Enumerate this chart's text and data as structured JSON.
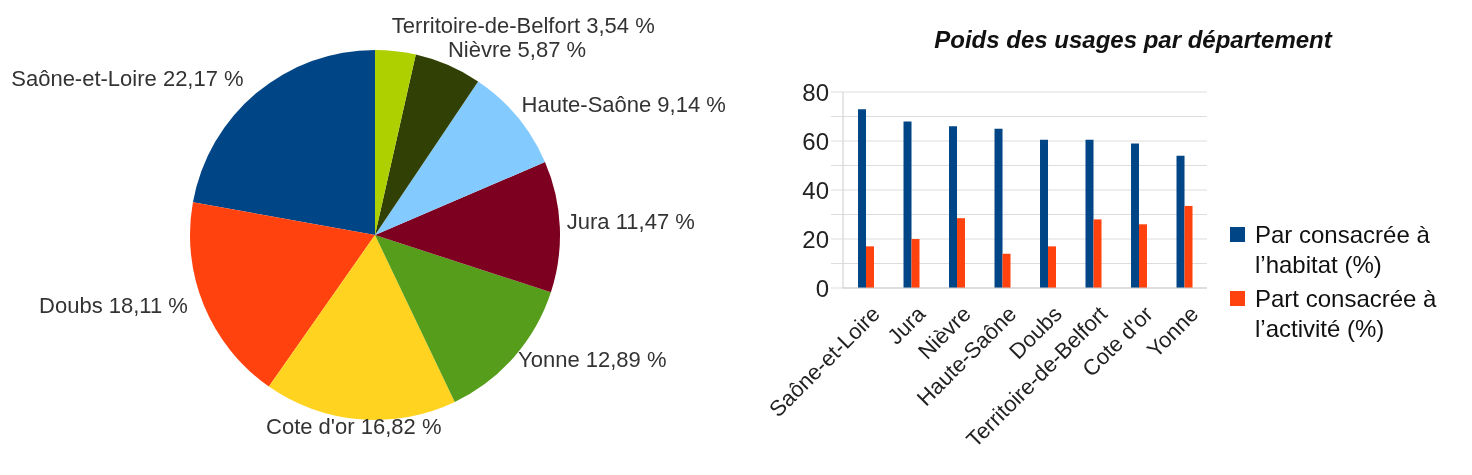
{
  "chart_data": [
    {
      "type": "pie",
      "categories": [
        "Saône-et-Loire",
        "Doubs",
        "Cote d'or",
        "Yonne",
        "Jura",
        "Haute-Saône",
        "Nièvre",
        "Territoire-de-Belfort"
      ],
      "values": [
        22.17,
        18.11,
        16.82,
        12.89,
        11.47,
        9.14,
        5.87,
        3.54
      ],
      "colors": [
        "#004586",
        "#ff420e",
        "#ffd320",
        "#579d1c",
        "#7e0021",
        "#83caff",
        "#314004",
        "#aecf00"
      ],
      "value_labels": [
        "22,17 %",
        "18,11 %",
        "16,82 %",
        "12,89 %",
        "11,47 %",
        "9,14 %",
        "5,87 %",
        "3,54 %"
      ]
    },
    {
      "type": "bar",
      "title": "Poids des usages par département",
      "categories": [
        "Saône-et-Loire",
        "Jura",
        "Nièvre",
        "Haute-Saône",
        "Doubs",
        "Territoire-de-Belfort",
        "Cote d'or",
        "Yonne"
      ],
      "series": [
        {
          "name": "Par consacrée à l’habitat (%)",
          "color": "#004586",
          "values": [
            73,
            68,
            66,
            65,
            60.5,
            60.5,
            59,
            54
          ]
        },
        {
          "name": "Part consacrée à l’activité (%)",
          "color": "#ff420e",
          "values": [
            17,
            20,
            28.5,
            14,
            17,
            28,
            26,
            33.5
          ]
        }
      ],
      "ylim": [
        0,
        80
      ],
      "yticks": [
        0,
        {
          "value": 10,
          "label": null
        },
        20,
        {
          "value": 30,
          "label": null
        },
        40,
        {
          "value": 50,
          "label": null
        },
        60,
        {
          "value": 70,
          "label": null
        },
        80
      ],
      "grid": "y",
      "legend": "right"
    }
  ]
}
